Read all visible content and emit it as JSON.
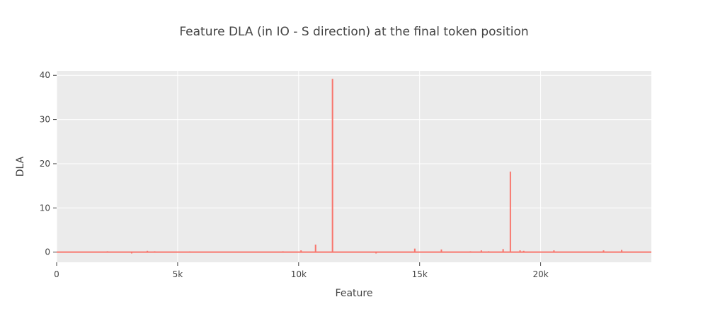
{
  "chart_data": {
    "type": "line",
    "title": "Feature DLA (in IO - S direction) at the final token position",
    "xlabel": "Feature",
    "ylabel": "DLA",
    "xlim": [
      0,
      24576
    ],
    "ylim": [
      -2.3,
      41
    ],
    "x_ticks": [
      0,
      5000,
      10000,
      15000,
      20000
    ],
    "x_tick_labels": [
      "0",
      "5k",
      "10k",
      "15k",
      "20k"
    ],
    "y_ticks": [
      0,
      10,
      20,
      30,
      40
    ],
    "y_tick_labels": [
      "0",
      "10",
      "20",
      "30",
      "40"
    ],
    "grid": true,
    "background": "#ebebeb",
    "line_color": "#f8766d",
    "series": [
      {
        "x": [
          0,
          2100,
          3100,
          3750,
          4050,
          5500,
          5900,
          6600,
          9350,
          10100,
          10700,
          11150,
          11400,
          13200,
          14800,
          15900,
          16700,
          17100,
          17550,
          17850,
          18450,
          18750,
          19150,
          19300,
          20550,
          21600,
          22600,
          23350,
          24576
        ],
        "y": [
          0,
          0.2,
          -0.3,
          0.3,
          0.2,
          0.15,
          0.1,
          0.1,
          0.2,
          0.4,
          1.7,
          0.1,
          39.2,
          -0.3,
          0.8,
          0.6,
          0.1,
          0.2,
          0.4,
          0.2,
          0.7,
          18.2,
          0.4,
          0.3,
          0.4,
          0.1,
          0.4,
          0.5,
          0
        ]
      }
    ]
  }
}
